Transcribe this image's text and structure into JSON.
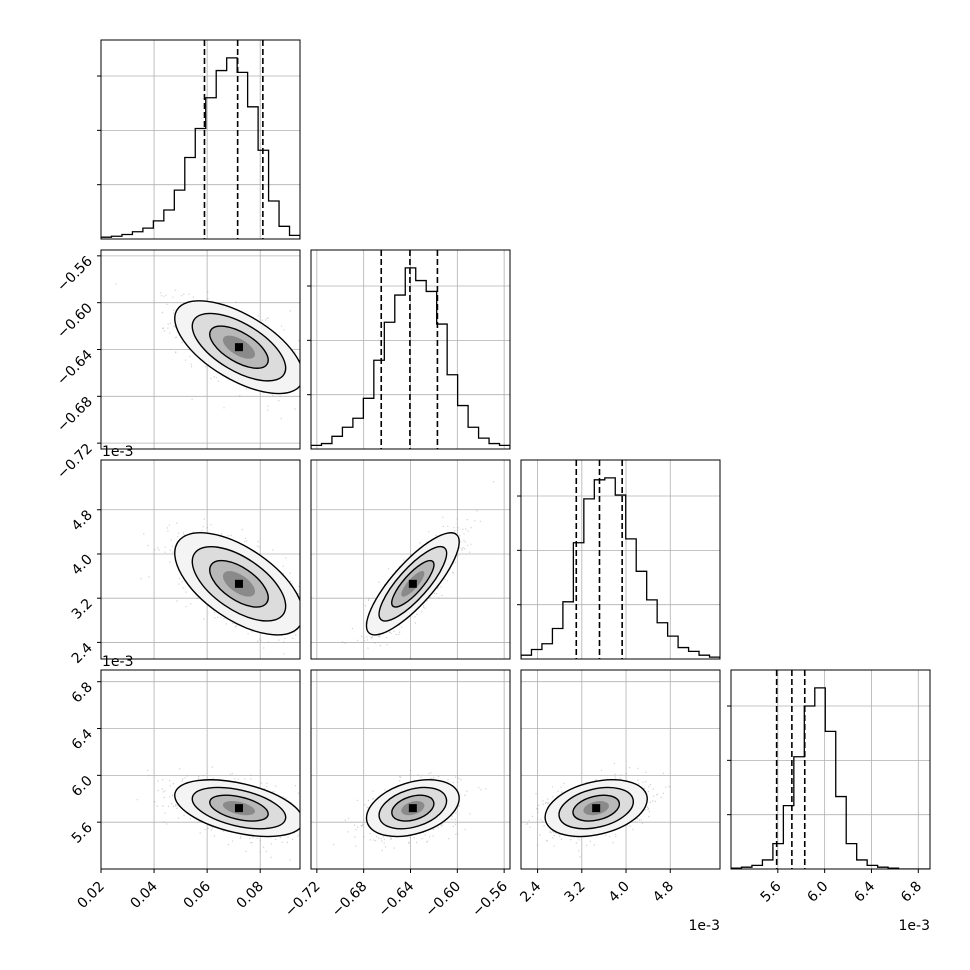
{
  "chart_data": {
    "type": "corner",
    "exponent_labels": {
      "y_row2": "1e-3",
      "y_row3": "1e-3",
      "x_col2": "1e-3",
      "x_col3": "1e-3"
    },
    "params": [
      {
        "range": [
          0.02,
          0.095
        ],
        "ticks": [
          0.02,
          0.04,
          0.06,
          0.08
        ],
        "tick_labels": [
          "0.02",
          "0.04",
          "0.06",
          "0.08"
        ],
        "mean": 0.072,
        "sd": 0.011,
        "quantiles": [
          0.059,
          0.0715,
          0.081
        ],
        "hist": [
          0.01,
          0.015,
          0.025,
          0.04,
          0.06,
          0.1,
          0.16,
          0.27,
          0.45,
          0.61,
          0.78,
          0.93,
          1.0,
          0.92,
          0.73,
          0.49,
          0.21,
          0.07,
          0.02
        ]
      },
      {
        "range": [
          -0.725,
          -0.555
        ],
        "ticks": [
          -0.72,
          -0.68,
          -0.64,
          -0.6,
          -0.56
        ],
        "tick_labels": [
          "−0.72",
          "−0.68",
          "−0.64",
          "−0.60",
          "−0.56"
        ],
        "mean": -0.638,
        "sd": 0.018,
        "quantiles": [
          -0.665,
          -0.6405,
          -0.617
        ],
        "hist": [
          0.02,
          0.03,
          0.07,
          0.12,
          0.17,
          0.28,
          0.49,
          0.7,
          0.85,
          1.0,
          0.93,
          0.87,
          0.69,
          0.41,
          0.24,
          0.12,
          0.06,
          0.03,
          0.02
        ]
      },
      {
        "range": [
          0.0021,
          0.0057
        ],
        "ticks": [
          0.0024,
          0.0032,
          0.004,
          0.0048
        ],
        "tick_labels": [
          "2.4",
          "3.2",
          "4.0",
          "4.8"
        ],
        "mean": 0.00346,
        "sd": 0.00042,
        "quantiles": [
          0.0031,
          0.00352,
          0.00393
        ],
        "hist": [
          0.02,
          0.05,
          0.08,
          0.16,
          0.3,
          0.61,
          0.84,
          0.94,
          0.95,
          0.86,
          0.63,
          0.46,
          0.31,
          0.19,
          0.12,
          0.06,
          0.04,
          0.02,
          0.01
        ]
      },
      {
        "range": [
          0.0052,
          0.0069
        ],
        "ticks": [
          0.0056,
          0.006,
          0.0064,
          0.0068
        ],
        "tick_labels": [
          "5.6",
          "6.0",
          "6.4",
          "6.8"
        ],
        "mean": 0.00572,
        "sd": 0.00011,
        "quantiles": [
          0.00559,
          0.00572,
          0.00583
        ],
        "hist": [
          0.005,
          0.01,
          0.02,
          0.05,
          0.14,
          0.35,
          0.62,
          0.9,
          1.0,
          0.76,
          0.4,
          0.14,
          0.05,
          0.02,
          0.01,
          0.005,
          0.0,
          0.0,
          0.0
        ]
      }
    ],
    "correlations": {
      "1_0": -0.62,
      "2_0": -0.6,
      "2_1": 0.82,
      "3_0": -0.45,
      "3_1": 0.35,
      "3_2": 0.32
    },
    "grid": true
  }
}
